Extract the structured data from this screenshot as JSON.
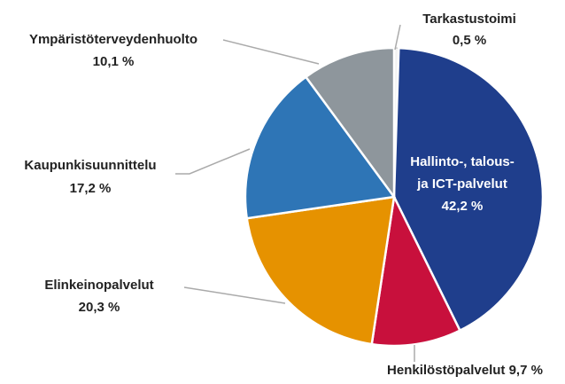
{
  "chart_data": {
    "type": "pie",
    "categories": [
      "Tarkastustoimi",
      "Hallinto-, talous- ja ICT-palvelut",
      "Henkilöstöpalvelut",
      "Elinkeinopalvelut",
      "Kaupunkisuunnittelu",
      "Ympäristöterveydenhuolto"
    ],
    "values": [
      0.5,
      42.2,
      9.7,
      20.3,
      17.2,
      10.1
    ],
    "value_labels": [
      "0,5 %",
      "42,2 %",
      "9,7 %",
      "20,3 %",
      "17,2 %",
      "10,1 %"
    ],
    "colors": [
      "#f2f2f2",
      "#1f3e8c",
      "#c8103c",
      "#e69200",
      "#2e75b6",
      "#8e969c"
    ]
  }
}
